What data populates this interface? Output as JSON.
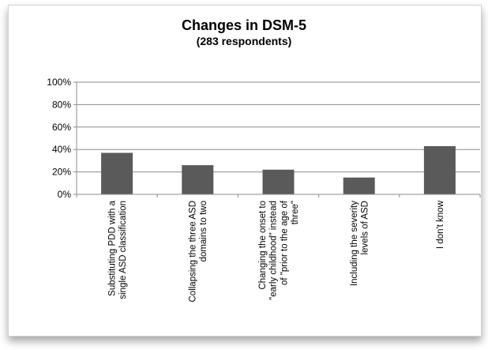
{
  "chart_data": {
    "type": "bar",
    "title": "Changes in DSM-5",
    "subtitle": "(283 respondents)",
    "categories": [
      [
        "Substituting PDD with a",
        "single ASD classification"
      ],
      [
        "Collapsing the three ASD",
        "domains to two"
      ],
      [
        "Changing the onset to",
        "\"early childhood\" instead",
        "of \"prior to the age of",
        "three\""
      ],
      [
        "Including the severity",
        "levels of ASD"
      ],
      [
        "I don't know"
      ]
    ],
    "values": [
      37,
      26,
      22,
      15,
      43
    ],
    "ylim": [
      0,
      100
    ],
    "ytick_values": [
      0,
      20,
      40,
      60,
      80,
      100
    ],
    "ytick_labels": [
      "0%",
      "20%",
      "40%",
      "60%",
      "80%",
      "100%"
    ],
    "grid": true,
    "bar_color": "#5a5a5a"
  }
}
